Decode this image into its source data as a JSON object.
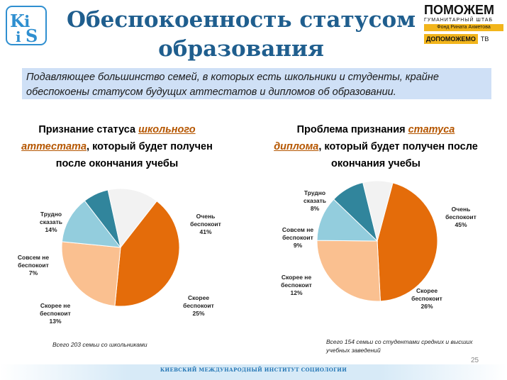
{
  "slide": {
    "title_line1": "Обеспокоенность статусом",
    "title_line2": "образования",
    "banner_line1": "Подавляющее большинство семей, в которых есть школьники и студенты, крайне",
    "banner_line2": "обеспокоены статусом будущих аттестатов и дипломов об образовании.",
    "page_number": "25",
    "footer": "КИЕВСКИЙ МЕЖДУНАРОДНЫЙ ИНСТИТУТ СОЦИОЛОГИИ"
  },
  "logos": {
    "kiis": {
      "k": "K",
      "i": "i",
      "i2": "i",
      "s": "S"
    },
    "pomozhem": {
      "title": "ПОМОЖЕМ",
      "subtitle": "ГУМАНИТАРНЫЙ ШТАБ",
      "fond": "Фонд Рината Ахметова",
      "dopomozhemo": "ДОПОМОЖЕМО",
      "tv": "ТВ"
    }
  },
  "colors": {
    "very_worried": "#e46c0a",
    "rather_worried": "#fac090",
    "rather_not": "#93cddd",
    "not_at_all": "#31859c",
    "hard_to_say": "#f2f2f2",
    "title": "#1f5e8e",
    "banner": "#cfe0f6"
  },
  "chart_data": [
    {
      "type": "pie",
      "title_part1": "Признание статуса ",
      "title_part2": "школьного аттестата",
      "title_part3": ", который будет получен после окончания учебы",
      "note": "Всего 203 семьи со школьниками",
      "slices": [
        {
          "line1": "Очень",
          "line2": "беспокоит",
          "value": 41,
          "label": "41%",
          "color_key": "very_worried"
        },
        {
          "line1": "Скорее",
          "line2": "беспокоит",
          "value": 25,
          "label": "25%",
          "color_key": "rather_worried"
        },
        {
          "line1": "Скорее не",
          "line2": "беспокоит",
          "value": 13,
          "label": "13%",
          "color_key": "rather_not"
        },
        {
          "line1": "Совсем не",
          "line2": "беспокоит",
          "value": 7,
          "label": "7%",
          "color_key": "not_at_all"
        },
        {
          "line1": "Трудно",
          "line2": "сказать",
          "value": 14,
          "label": "14%",
          "color_key": "hard_to_say"
        }
      ]
    },
    {
      "type": "pie",
      "title_part1": "Проблема признания ",
      "title_part2": "статуса диплома",
      "title_part3": ", который будет получен после окончания учебы",
      "note": "Всего 154 семьи со студентами средних и высших учебных заведений",
      "slices": [
        {
          "line1": "Очень",
          "line2": "беспокоит",
          "value": 45,
          "label": "45%",
          "color_key": "very_worried"
        },
        {
          "line1": "Скорее",
          "line2": "беспокоит",
          "value": 26,
          "label": "26%",
          "color_key": "rather_worried"
        },
        {
          "line1": "Скорее не",
          "line2": "беспокоит",
          "value": 12,
          "label": "12%",
          "color_key": "rather_not"
        },
        {
          "line1": "Совсем не",
          "line2": "беспокоит",
          "value": 9,
          "label": "9%",
          "color_key": "not_at_all"
        },
        {
          "line1": "Трудно",
          "line2": "сказать",
          "value": 8,
          "label": "8%",
          "color_key": "hard_to_say"
        }
      ]
    }
  ]
}
